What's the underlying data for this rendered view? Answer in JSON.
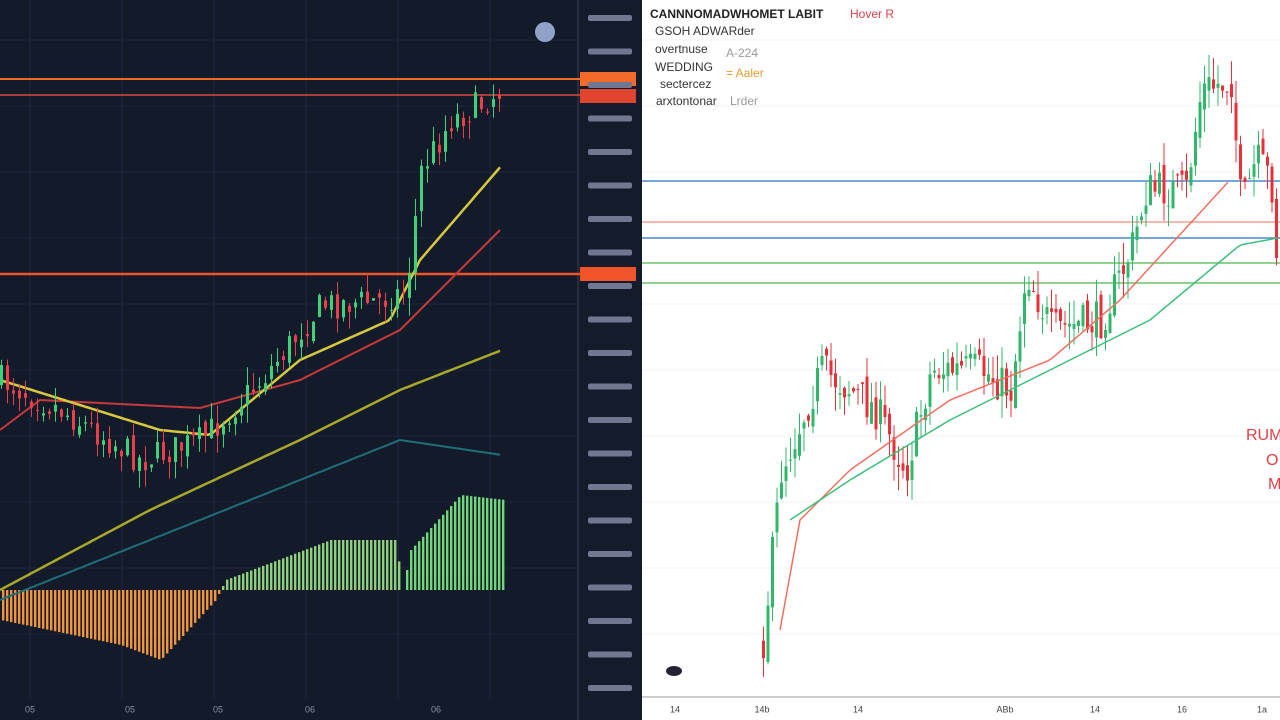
{
  "right_panel": {
    "title": "CANNNOMADWHOMET LABIT",
    "title_tag": "Hover R",
    "legend": [
      "GSOH ADWARder",
      "overtnuse",
      "A-224",
      "WEDDING",
      "= Aaler",
      "sectercez",
      "arxtontonar",
      "Lrder"
    ],
    "annotation": [
      "RUM",
      "O",
      "M"
    ],
    "x_labels": [
      "14",
      "14b",
      "14",
      "ABb",
      "14",
      "16",
      "1a"
    ]
  },
  "left_panel": {
    "x_labels": [
      "05",
      "05",
      "05",
      "06",
      "06"
    ]
  }
}
